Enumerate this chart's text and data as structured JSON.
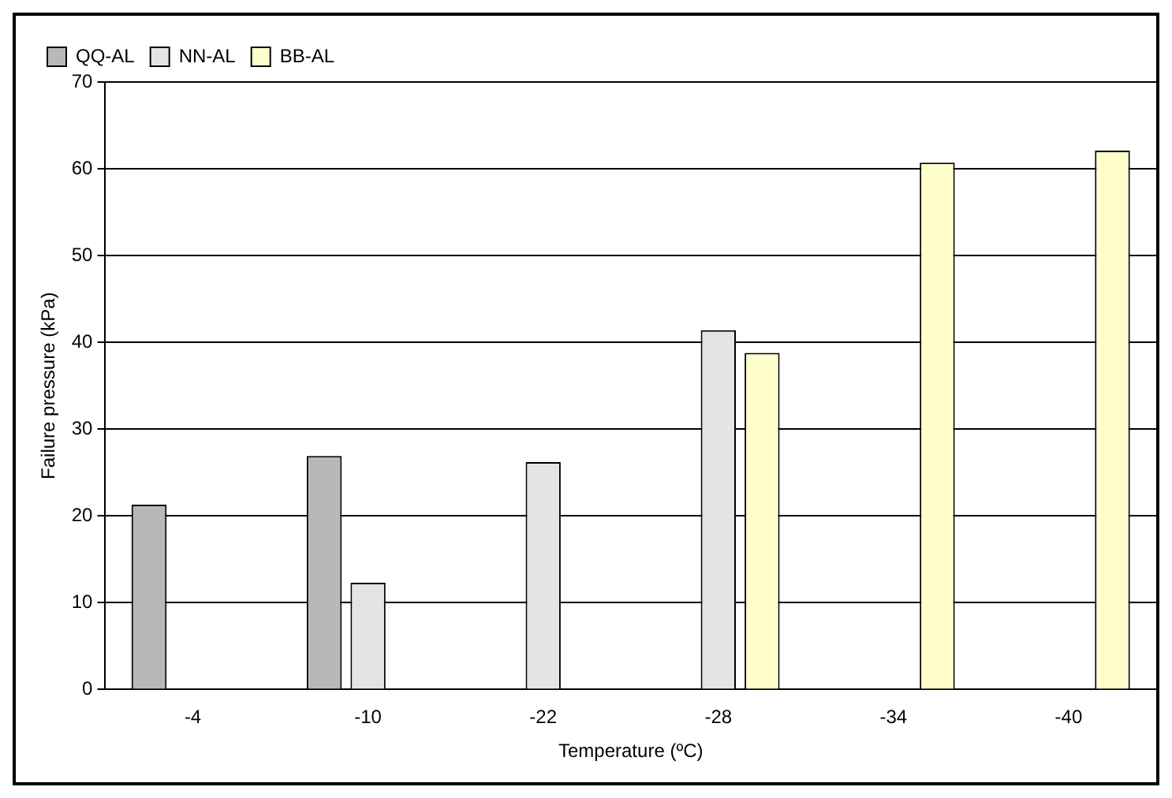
{
  "chart_data": {
    "type": "bar",
    "xlabel": "Temperature (ºC)",
    "ylabel": "Failure pressure (kPa)",
    "categories": [
      "-4",
      "-10",
      "-22",
      "-28",
      "-34",
      "-40"
    ],
    "series": [
      {
        "name": "QQ-AL",
        "color": "#b8b8b8",
        "values": [
          21.3,
          26.9,
          null,
          null,
          null,
          null
        ]
      },
      {
        "name": "NN-AL",
        "color": "#e4e4e4",
        "values": [
          null,
          12.3,
          26.2,
          41.4,
          null,
          null
        ]
      },
      {
        "name": "BB-AL",
        "color": "#ffffcc",
        "values": [
          null,
          null,
          null,
          38.8,
          60.7,
          62.1
        ]
      }
    ],
    "ylim": [
      0,
      70
    ],
    "yticks": [
      0,
      10,
      20,
      30,
      40,
      50,
      60,
      70
    ],
    "grid": "y",
    "legend": "top left"
  }
}
